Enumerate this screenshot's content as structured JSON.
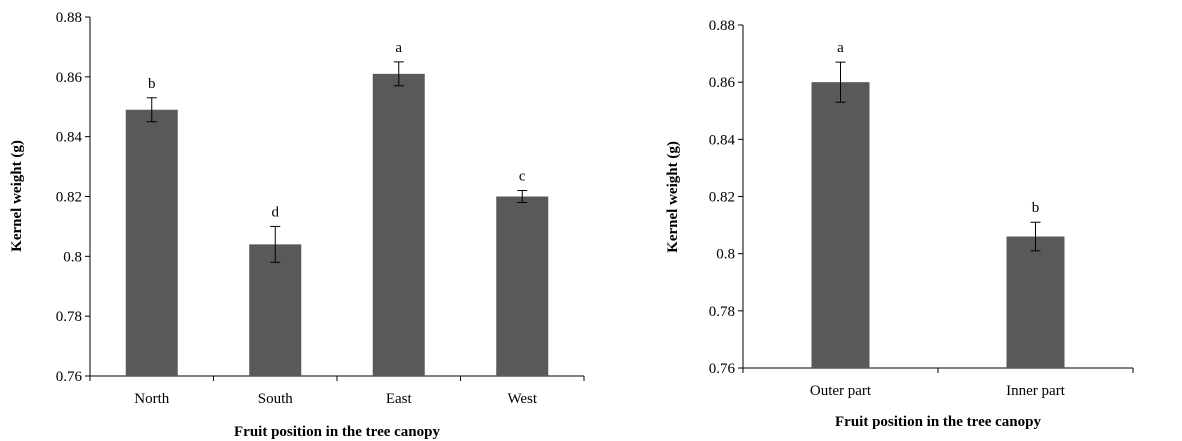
{
  "chart_data": [
    {
      "type": "bar",
      "categories": [
        "North",
        "South",
        "East",
        "West"
      ],
      "values": [
        0.849,
        0.804,
        0.861,
        0.82
      ],
      "errors": [
        0.004,
        0.006,
        0.004,
        0.002
      ],
      "significance_letters": [
        "b",
        "d",
        "a",
        "c"
      ],
      "yticks": [
        "0.76",
        "0.78",
        "0.8",
        "0.82",
        "0.84",
        "0.86",
        "0.88"
      ],
      "title": "",
      "xlabel": "Fruit position in the tree canopy",
      "ylabel": "Kernel weight (g)",
      "ylim": [
        0.76,
        0.88
      ],
      "bar_color": "#595959",
      "grid": false
    },
    {
      "type": "bar",
      "categories": [
        "Outer part",
        "Inner part"
      ],
      "values": [
        0.86,
        0.806
      ],
      "errors": [
        0.007,
        0.005
      ],
      "significance_letters": [
        "a",
        "b"
      ],
      "yticks": [
        "0.76",
        "0.78",
        "0.8",
        "0.82",
        "0.84",
        "0.86",
        "0.88"
      ],
      "title": "",
      "xlabel": "Fruit position in the tree canopy",
      "ylabel": "Kernel weight (g)",
      "ylim": [
        0.76,
        0.88
      ],
      "bar_color": "#595959",
      "grid": false
    }
  ]
}
